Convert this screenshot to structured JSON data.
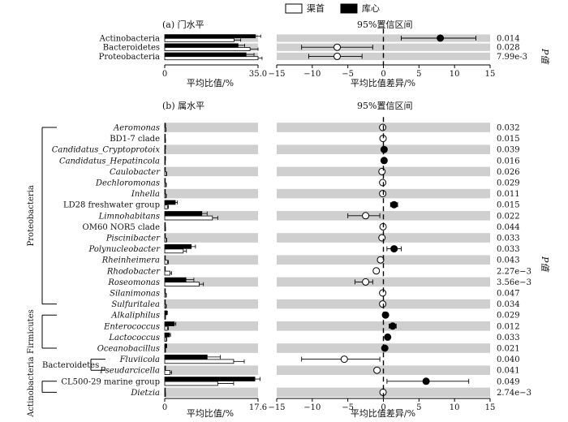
{
  "legend": {
    "items": [
      {
        "label": "渠首",
        "fill": "#ffffff"
      },
      {
        "label": "库心",
        "fill": "#000000"
      }
    ]
  },
  "pvalue_axis_label": "P值",
  "chart_data": [
    {
      "type": "bar",
      "panel_title": "(a) 门水平",
      "xlabel": "平均比值/%",
      "xlim": [
        0,
        35
      ],
      "x_ticks": [
        "0",
        "35.0"
      ],
      "group_colors": {
        "渠首": "#ffffff",
        "库心": "#000000"
      },
      "categories": [
        "Actinobacteria",
        "Bacteroidetes",
        "Proteobacteria"
      ],
      "italic": [
        false,
        false,
        false
      ],
      "series": [
        {
          "name": "库心",
          "values": [
            34.0,
            27.5,
            30.5
          ],
          "err": [
            2.0,
            2.5,
            3.0
          ]
        },
        {
          "name": "渠首",
          "values": [
            26.0,
            32.0,
            35.0
          ],
          "err": [
            2.5,
            3.0,
            1.5
          ]
        }
      ]
    },
    {
      "type": "scatter",
      "panel_title": "95%置信区间",
      "xlabel": "平均比值差异/%",
      "xlim": [
        -15,
        15
      ],
      "x_ticks": [
        "−15",
        "−10",
        "−5",
        "0",
        "5",
        "10",
        "15"
      ],
      "categories": [
        "Actinobacteria",
        "Bacteroidetes",
        "Proteobacteria"
      ],
      "diff": [
        8.0,
        -6.5,
        -6.5
      ],
      "ci_low": [
        2.5,
        -11.5,
        -10.5
      ],
      "ci_high": [
        13.0,
        -1.5,
        -3.0
      ],
      "enriched_in": [
        "库心",
        "渠首",
        "渠首"
      ],
      "p_values": [
        "0.014",
        "0.028",
        "7.99e-3"
      ]
    },
    {
      "type": "bar",
      "panel_title": "(b) 属水平",
      "xlabel": "平均比值/%",
      "xlim": [
        0,
        17.6
      ],
      "x_ticks": [
        "0",
        "17.6"
      ],
      "categories": [
        "Aeromonas",
        "BD1-7 clade",
        "Candidatus_Cryptoprotoix",
        "Candidatus_Hepatincola",
        "Caulobacter",
        "Dechloromonas",
        "Inhella",
        "LD28 freshwater group",
        "Limnohabitans",
        "OM60 NOR5 clade",
        "Piscinibacter",
        "Polynucleobacter",
        "Rheinheimera",
        "Rhodobacter",
        "Roseomonas",
        "Silanimonas",
        "Sulfuritalea",
        "Alkaliphilus",
        "Enterococcus",
        "Lactococcus",
        "Oceanobacillus",
        "Fluviicola",
        "Pseudarcicella",
        "CL500-29 marine group",
        "Dietzia"
      ],
      "italic": [
        true,
        false,
        true,
        true,
        true,
        true,
        true,
        false,
        true,
        false,
        true,
        true,
        true,
        true,
        true,
        true,
        true,
        true,
        true,
        true,
        true,
        true,
        true,
        false,
        true
      ],
      "series": [
        {
          "name": "库心",
          "values": [
            0.1,
            0.05,
            0.1,
            0.1,
            0.05,
            0.05,
            0.05,
            2.0,
            7.0,
            0.05,
            0.05,
            5.0,
            0.05,
            0.05,
            4.0,
            0.05,
            0.05,
            0.4,
            1.8,
            0.9,
            0.3,
            8.0,
            0.1,
            17.0,
            0.05
          ],
          "err": [
            0.05,
            0.02,
            0.05,
            0.05,
            0.02,
            0.02,
            0.02,
            0.4,
            1.0,
            0.02,
            0.02,
            0.8,
            0.02,
            0.02,
            1.5,
            0.02,
            0.02,
            0.1,
            0.3,
            0.2,
            0.1,
            2.5,
            0.05,
            1.0,
            0.02
          ]
        },
        {
          "name": "渠首",
          "values": [
            0.2,
            0.1,
            0.05,
            0.05,
            0.3,
            0.2,
            0.2,
            0.5,
            9.0,
            0.1,
            0.3,
            3.5,
            0.5,
            1.0,
            6.5,
            0.2,
            0.2,
            0.1,
            0.5,
            0.3,
            0.1,
            13.0,
            1.0,
            10.0,
            0.1
          ],
          "err": [
            0.05,
            0.05,
            0.02,
            0.02,
            0.1,
            0.1,
            0.1,
            0.2,
            1.0,
            0.05,
            0.1,
            0.6,
            0.2,
            0.3,
            0.8,
            0.1,
            0.1,
            0.05,
            0.2,
            0.1,
            0.05,
            2.0,
            0.3,
            3.0,
            0.05
          ]
        }
      ],
      "phylum_groups": [
        {
          "name": "Proteobacteria",
          "first": 0,
          "last": 16
        },
        {
          "name": "Firmicutes",
          "first": 17,
          "last": 20
        },
        {
          "name": "Bacteroidetes",
          "first": 21,
          "last": 22
        },
        {
          "name": "Actinobacteria",
          "first": 23,
          "last": 24
        }
      ]
    },
    {
      "type": "scatter",
      "panel_title": "95%置信区间",
      "xlabel": "平均比值差异/%",
      "xlim": [
        -15,
        15
      ],
      "x_ticks": [
        "−15",
        "−10",
        "−5",
        "0",
        "5",
        "10",
        "15"
      ],
      "categories": [
        "Aeromonas",
        "BD1-7 clade",
        "Candidatus_Cryptoprotoix",
        "Candidatus_Hepatincola",
        "Caulobacter",
        "Dechloromonas",
        "Inhella",
        "LD28 freshwater group",
        "Limnohabitans",
        "OM60 NOR5 clade",
        "Piscinibacter",
        "Polynucleobacter",
        "Rheinheimera",
        "Rhodobacter",
        "Roseomonas",
        "Silanimonas",
        "Sulfuritalea",
        "Alkaliphilus",
        "Enterococcus",
        "Lactococcus",
        "Oceanobacillus",
        "Fluviicola",
        "Pseudarcicella",
        "CL500-29 marine group",
        "Dietzia"
      ],
      "diff": [
        -0.1,
        -0.05,
        0.1,
        0.1,
        -0.2,
        -0.1,
        -0.1,
        1.5,
        -2.5,
        -0.05,
        -0.2,
        1.5,
        -0.4,
        -1.0,
        -2.5,
        -0.1,
        -0.1,
        0.3,
        1.3,
        0.6,
        0.2,
        -5.5,
        -0.9,
        6.0,
        -0.05
      ],
      "ci_low": [
        -0.15,
        -0.1,
        0.05,
        0.05,
        -0.3,
        -0.2,
        -0.2,
        1.0,
        -5.0,
        -0.1,
        -0.3,
        0.5,
        -0.6,
        -1.3,
        -4.0,
        -0.2,
        -0.2,
        0.1,
        0.8,
        0.3,
        0.1,
        -11.5,
        -1.2,
        0.5,
        -0.1
      ],
      "ci_high": [
        -0.05,
        0.0,
        0.15,
        0.15,
        -0.1,
        0.0,
        0.0,
        2.0,
        -0.5,
        0.0,
        -0.1,
        2.5,
        -0.2,
        -0.7,
        -1.5,
        0.0,
        0.0,
        0.5,
        1.8,
        0.9,
        0.3,
        -0.5,
        -0.6,
        12.0,
        0.0
      ],
      "enriched_in": [
        "渠首",
        "渠首",
        "库心",
        "库心",
        "渠首",
        "渠首",
        "渠首",
        "库心",
        "渠首",
        "渠首",
        "渠首",
        "库心",
        "渠首",
        "渠首",
        "渠首",
        "渠首",
        "渠首",
        "库心",
        "库心",
        "库心",
        "库心",
        "渠首",
        "渠首",
        "库心",
        "渠首"
      ],
      "p_values": [
        "0.032",
        "0.015",
        "0.039",
        "0.016",
        "0.026",
        "0.029",
        "0.011",
        "0.015",
        "0.022",
        "0.044",
        "0.033",
        "0.033",
        "0.043",
        "2.27e−3",
        "3.56e−3",
        "0.047",
        "0.034",
        "0.029",
        "0.012",
        "0.033",
        "0.021",
        "0.040",
        "0.041",
        "0.049",
        "2.74e−3"
      ]
    }
  ]
}
